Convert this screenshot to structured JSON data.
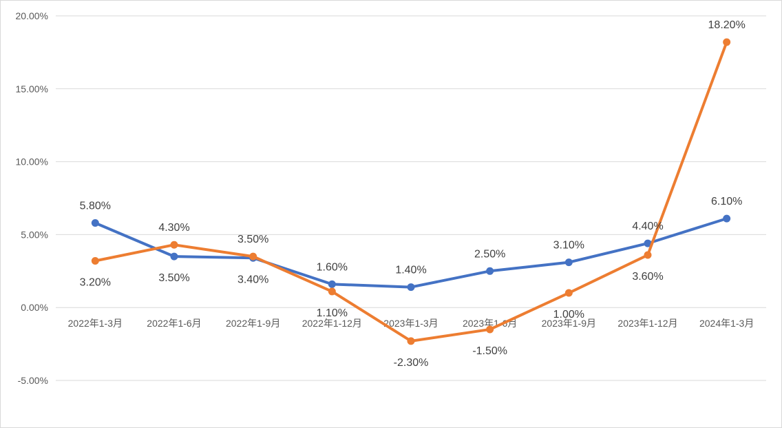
{
  "chart_data": {
    "type": "line",
    "title": "",
    "xlabel": "",
    "ylabel": "",
    "ylim": [
      -5,
      20
    ],
    "yticks": [
      {
        "value": 20,
        "label": "20.00%"
      },
      {
        "value": 15,
        "label": "15.00%"
      },
      {
        "value": 10,
        "label": "10.00%"
      },
      {
        "value": 5,
        "label": "5.00%"
      },
      {
        "value": 0,
        "label": "0.00%"
      },
      {
        "value": -5,
        "label": "-5.00%"
      }
    ],
    "grid": true,
    "legend": "none",
    "categories": [
      "2022年1-3月",
      "2022年1-6月",
      "2022年1-9月",
      "2022年1-12月",
      "2023年1-3月",
      "2023年1-6月",
      "2023年1-9月",
      "2023年1-12月",
      "2024年1-3月"
    ],
    "series": [
      {
        "color": "#4472c4",
        "values": [
          5.8,
          3.5,
          3.4,
          1.6,
          1.4,
          2.5,
          3.1,
          4.4,
          6.1
        ],
        "labels": [
          "5.80%",
          "3.50%",
          "3.40%",
          "1.60%",
          "1.40%",
          "2.50%",
          "3.10%",
          "4.40%",
          "6.10%"
        ],
        "label_pos": [
          "above",
          "below",
          "below",
          "above",
          "above",
          "above",
          "above",
          "above",
          "above"
        ]
      },
      {
        "color": "#ed7d31",
        "values": [
          3.2,
          4.3,
          3.5,
          1.1,
          -2.3,
          -1.5,
          1.0,
          3.6,
          18.2
        ],
        "labels": [
          "3.20%",
          "4.30%",
          "3.50%",
          "1.10%",
          "-2.30%",
          "-1.50%",
          "1.00%",
          "3.60%",
          "18.20%"
        ],
        "label_pos": [
          "below",
          "above",
          "above",
          "below",
          "below",
          "below",
          "below",
          "below",
          "above"
        ]
      }
    ]
  }
}
